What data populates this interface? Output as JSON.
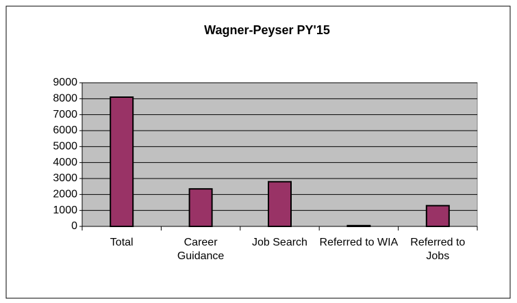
{
  "chart_data": {
    "type": "bar",
    "title": "Wagner-Peyser PY'15",
    "categories": [
      "Total",
      "Career Guidance",
      "Job Search",
      "Referred to WIA",
      "Referred to Jobs"
    ],
    "values": [
      8100,
      2350,
      2800,
      50,
      1300
    ],
    "color": "#993366",
    "ylim": [
      0,
      9000
    ],
    "yticks": [
      0,
      1000,
      2000,
      3000,
      4000,
      5000,
      6000,
      7000,
      8000,
      9000
    ],
    "grid": true
  }
}
